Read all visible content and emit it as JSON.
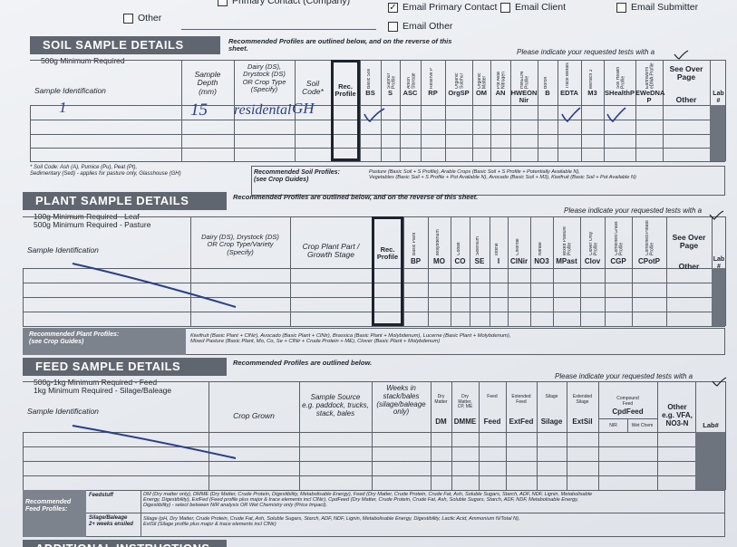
{
  "contact": {
    "options": [
      {
        "label": "Other",
        "checked": false
      },
      {
        "label": "Primary Contact (Company)",
        "checked": false
      },
      {
        "label": "Email Primary Contact",
        "checked": true
      },
      {
        "label": "Email Client",
        "checked": false
      },
      {
        "label": "Email Submitter",
        "checked": false
      },
      {
        "label": "Email Other",
        "checked": false
      }
    ]
  },
  "soil": {
    "title": "SOIL SAMPLE DETAILS",
    "minimum": "500g Minimum Required",
    "recommended_note": "Recommended Profiles are outlined below, and on the reverse of this\nsheet.",
    "request_note": "Please indicate your requested tests with a",
    "columns": {
      "sample_id": "Sample Identification",
      "depth": "Sample\nDepth\n(mm)",
      "crop": "Dairy (DS),\nDrystock (DS)\nOR Crop Type\n(Specify)",
      "code": "Soil\nCode*",
      "rec": "Rec.\nProfile",
      "see_over": "See Over\nPage",
      "other": "Other",
      "lab": "Lab\n#"
    },
    "tests": [
      {
        "label": "Basic Soil",
        "code": "BS"
      },
      {
        "label": "Sulphur Profile",
        "code": "S"
      },
      {
        "label": "Anion Storage Capacity",
        "code": "ASC"
      },
      {
        "label": "Reserve P",
        "code": "RP"
      },
      {
        "label": "Organic Sulphur Profile",
        "code": "OrgSP"
      },
      {
        "label": "Organic Matter",
        "code": "OM"
      },
      {
        "label": "Pot Avail Nitrogen",
        "code": "AN"
      },
      {
        "label": "HWEON Profile",
        "code": "HWEON\nNir"
      },
      {
        "label": "Boron",
        "code": "B"
      },
      {
        "label": "Trace Metals",
        "code": "EDTA"
      },
      {
        "label": "Mehlich 3",
        "code": "M3"
      },
      {
        "label": "Soil Health Profile",
        "code": "SHealthP"
      },
      {
        "label": "Earthworm eDNA Profile",
        "code": "EWeDNA\nP"
      }
    ],
    "entry": {
      "id": "1",
      "depth": "15",
      "crop": "residental",
      "code": "GH"
    },
    "footnote": "* Soil Code: Ash (A), Pumice (Pu), Peat (Pt),\nSedimentary (Sed) - applies for pasture only, Glasshouse (GH)",
    "profiles_label": "Recommended Soil Profiles:\n(see Crop Guides)",
    "profiles": "Pasture (Basic Soil + S Profile), Arable Crops (Basic Soil + S Profile + Potentially Available N),\nVegetables (Basic Soil + S Profile + Pot Available N), Avocado (Basic Soil + M3), Kiwifruit (Basic Soil + Pot Available N)"
  },
  "plant": {
    "title": "PLANT SAMPLE DETAILS",
    "minimum": "100g Minimum Required - Leaf\n500g Minimum Required - Pasture",
    "recommended_note": "Recommended Profiles are outlined below, and on the reverse of this sheet.",
    "request_note": "Please indicate your requested tests with a",
    "columns": {
      "sample_id": "Sample Identification",
      "crop": "Dairy (DS), Drystock (DS)\nOR Crop Type/Variety\n(Specify)",
      "stage": "Crop Plant Part /\nGrowth Stage",
      "rec": "Rec.\nProfile",
      "see_over": "See Over\nPage",
      "other": "Other",
      "lab": "Lab\n#"
    },
    "tests": [
      {
        "label": "Basic Plant",
        "code": "BP"
      },
      {
        "label": "Molybdenum",
        "code": "MO"
      },
      {
        "label": "Cobalt",
        "code": "CO"
      },
      {
        "label": "Selenium",
        "code": "SE"
      },
      {
        "label": "Iodine",
        "code": "I"
      },
      {
        "label": "Chloride",
        "code": "ClNir"
      },
      {
        "label": "Nitrate",
        "code": "NO3"
      },
      {
        "label": "Mixed Pasture Profile",
        "code": "MPast"
      },
      {
        "label": "Clover Only Profile",
        "code": "Clov"
      },
      {
        "label": "Combined Grass Profile",
        "code": "CGP"
      },
      {
        "label": "Combined Potato Profile",
        "code": "CPotP"
      }
    ],
    "profiles_label": "Recommended Plant Profiles:\n(see Crop Guides)",
    "profiles": "Kiwifruit (Basic Plant + ClNir), Avocado (Basic Plant + ClNir), Brassica (Basic Plant + Molybdenum), Lucerne (Basic Plant + Molybdenum),\nMixed Pasture (Basic Plant, Mo, Co, Se + ClNir + Crude Protein + ME), Clover (Basic Plant + Molybdenum)"
  },
  "feed": {
    "title": "FEED SAMPLE DETAILS",
    "minimum": "500g-1kg Minimum Required - Feed\n1kg Minimum Required - Silage/Baleage",
    "recommended_note": "Recommended Profiles are outlined below.",
    "request_note": "Please indicate your requested tests with a",
    "columns": {
      "sample_id": "Sample Identification",
      "crop": "Crop Grown",
      "source": "Sample Source\ne.g. paddock, trucks,\nstack, bales",
      "weeks": "Weeks in\nstack/bales\n(silage/baleage\nonly)",
      "other": "Other\ne.g. VFA,\nNO3-N",
      "lab": "Lab#"
    },
    "tests": [
      {
        "label": "Dry\nMatter",
        "code": "DM"
      },
      {
        "label": "Dry\nMatter,\nCP, ME",
        "code": "DMME"
      },
      {
        "label": "Feed",
        "code": "Feed"
      },
      {
        "label": "Extended\nFeed",
        "code": "ExtFed"
      },
      {
        "label": "Silage",
        "code": "Silage"
      },
      {
        "label": "Extended\nSilage",
        "code": "ExtSil"
      }
    ],
    "compound": {
      "label": "Compound\nFeed",
      "code": "CpdFeed",
      "methods": [
        "NIR",
        "Wet Chem"
      ]
    },
    "profiles_label": "Recommended\nFeed Profiles:",
    "feedstuff_label": "Feedstuff",
    "feedstuff": "DM (Dry matter only), DMME (Dry Matter, Crude Protein, Digestibility, Metabolisable Energy), Feed (Dry Matter, Crude Protein, Crude Fat, Ash, Soluble Sugars, Starch, ADF, NDF, Lignin, Metabolisable\nEnergy, Digestibility), ExtFed (Feed profile plus major & trace elements incl ClNir), CpdFeed (Dry Matter, Crude Protein, Crude Fat, Ash, Soluble Sugars, Starch, ADF, NDF, Metabolisable Energy,\nDigestibility) - select between NIR analysis OR Wet Chemistry only (Price Impact).",
    "silage_label": "Silage/Baleage\n2+ weeks ensiled",
    "silage": "Silage (pH, Dry Matter, Crude Protein, Crude Fat, Ash, Soluble Sugars, Starch, ADF, NDF, Lignin, Metabolisable Energy, Digestibility, Lactic Acid, Ammonium N/Total N),\nExtSil (Silage profile plus major & trace elements incl ClNir)"
  },
  "additional": {
    "title": "ADDITIONAL INSTRUCTIONS"
  }
}
